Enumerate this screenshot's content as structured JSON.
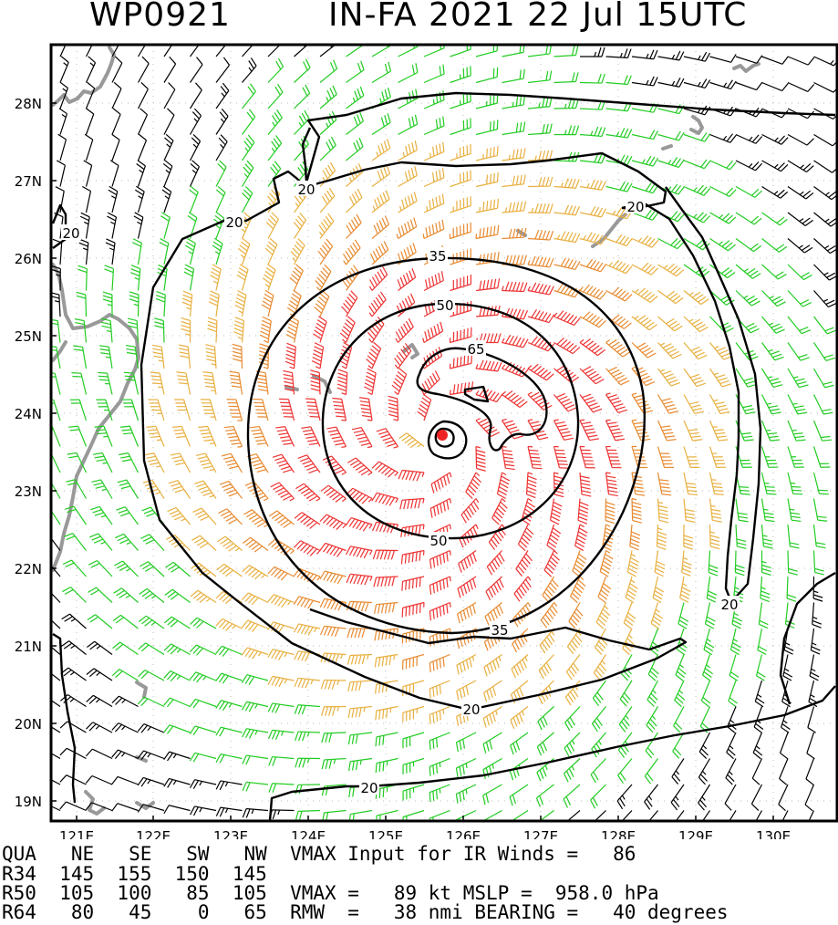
{
  "header": {
    "storm_id": "WP0921",
    "storm_title": "IN-FA 2021 22 Jul 15UTC"
  },
  "map": {
    "lat_labels": [
      "28N",
      "27N",
      "26N",
      "25N",
      "24N",
      "23N",
      "22N",
      "21N",
      "20N",
      "19N"
    ],
    "lon_labels": [
      "121E",
      "122E",
      "123E",
      "124E",
      "125E",
      "126E",
      "127E",
      "128E",
      "129E",
      "130E"
    ],
    "contour_labels": [
      "20",
      "20",
      "20",
      "20",
      "20",
      "20",
      "20",
      "35",
      "35",
      "50",
      "50",
      "65"
    ],
    "contour_values_kt": [
      20,
      35,
      50,
      65
    ],
    "barb_colors": {
      "below_20": "#000000",
      "20_to_35": "#22cc22",
      "35_to_50": "#e8b040",
      "50_to_65": "#e88a30",
      "above_65": "#ee3333"
    },
    "center_marker_color": "#ee2222",
    "land_color": "#999999"
  },
  "table": {
    "line1": "QUA   NE   SE   SW   NW  VMAX Input for IR Winds =   86",
    "line2": "R34  145  155  150  145",
    "line3": "R50  105  100   85  105  VMAX =   89 kt MSLP =  958.0 hPa",
    "line4": "R64   80   45    0   65  RMW  =   38 nmi BEARING =   40 degrees"
  }
}
